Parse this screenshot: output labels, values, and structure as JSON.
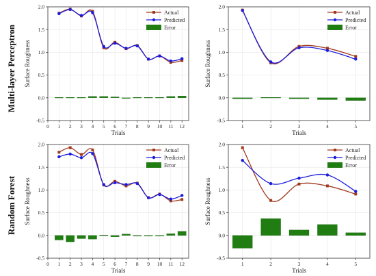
{
  "row_labels": [
    "Multi-layer Perceptron",
    "Random Forest"
  ],
  "colors": {
    "actual": "#a0391c",
    "predicted": "#1c1cdc",
    "error": "#1f7d12"
  },
  "chart_data": [
    {
      "type": "line",
      "row_label": "Multi-layer Perceptron",
      "xlabel": "Trials",
      "ylabel": "Surface Roughness",
      "xlim": [
        0,
        12.6
      ],
      "ylim": [
        -0.5,
        2.0
      ],
      "xticks": [
        0,
        1,
        2,
        3,
        4,
        5,
        6,
        7,
        8,
        9,
        10,
        11,
        12
      ],
      "yticks": [
        -0.5,
        0.0,
        0.5,
        1.0,
        1.5,
        2.0
      ],
      "x": [
        1,
        2,
        3,
        4,
        5,
        6,
        7,
        8,
        9,
        10,
        11,
        12
      ],
      "series": [
        {
          "name": "Actual",
          "kind": "line",
          "color": "#a0391c",
          "values": [
            1.86,
            1.95,
            1.8,
            1.9,
            1.1,
            1.22,
            1.08,
            1.15,
            0.85,
            0.92,
            0.78,
            0.82
          ]
        },
        {
          "name": "Predicted",
          "kind": "line",
          "color": "#1c1cdc",
          "values": [
            1.85,
            1.94,
            1.81,
            1.87,
            1.13,
            1.2,
            1.09,
            1.14,
            0.85,
            0.92,
            0.81,
            0.86
          ]
        },
        {
          "name": "Error",
          "kind": "bar",
          "color": "#1f7d12",
          "values": [
            0.01,
            0.01,
            0.01,
            0.03,
            0.03,
            0.02,
            0.0,
            0.01,
            0.01,
            0.01,
            0.03,
            0.04
          ]
        }
      ],
      "legend": "top-right",
      "grid": true
    },
    {
      "type": "line",
      "row_label": "Multi-layer Perceptron",
      "xlabel": "Trials",
      "ylabel": "Surface Roughness",
      "xlim": [
        0.5,
        5.5
      ],
      "ylim": [
        -0.5,
        2.0
      ],
      "xticks": [
        1,
        2,
        3,
        4,
        5
      ],
      "yticks": [
        -0.5,
        0.0,
        0.5,
        1.0,
        1.5,
        2.0
      ],
      "x": [
        1,
        2,
        3,
        4,
        5
      ],
      "series": [
        {
          "name": "Actual",
          "kind": "line",
          "color": "#a0391c",
          "values": [
            1.93,
            0.77,
            1.13,
            1.09,
            0.91
          ]
        },
        {
          "name": "Predicted",
          "kind": "line",
          "color": "#1c1cdc",
          "values": [
            1.92,
            0.79,
            1.1,
            1.04,
            0.85
          ]
        },
        {
          "name": "Error",
          "kind": "bar",
          "color": "#1f7d12",
          "values": [
            -0.02,
            0.01,
            -0.02,
            -0.04,
            -0.06
          ]
        }
      ],
      "legend": "top-right",
      "grid": true
    },
    {
      "type": "line",
      "row_label": "Random Forest",
      "xlabel": "Trials",
      "ylabel": "Surface Roughness",
      "xlim": [
        0,
        12.6
      ],
      "ylim": [
        -0.5,
        2.0
      ],
      "xticks": [
        0,
        1,
        2,
        3,
        4,
        5,
        6,
        7,
        8,
        9,
        10,
        11,
        12
      ],
      "yticks": [
        -0.5,
        0.0,
        0.5,
        1.0,
        1.5,
        2.0
      ],
      "x": [
        1,
        2,
        3,
        4,
        5,
        6,
        7,
        8,
        9,
        10,
        11,
        12
      ],
      "series": [
        {
          "name": "Actual",
          "kind": "line",
          "color": "#a0391c",
          "values": [
            1.83,
            1.93,
            1.78,
            1.88,
            1.11,
            1.19,
            1.09,
            1.15,
            0.83,
            0.91,
            0.76,
            0.79
          ]
        },
        {
          "name": "Predicted",
          "kind": "line",
          "color": "#1c1cdc",
          "values": [
            1.73,
            1.79,
            1.71,
            1.8,
            1.12,
            1.16,
            1.12,
            1.14,
            0.83,
            0.9,
            0.8,
            0.88
          ]
        },
        {
          "name": "Error",
          "kind": "bar",
          "color": "#1f7d12",
          "values": [
            -0.1,
            -0.14,
            -0.07,
            -0.08,
            0.01,
            -0.03,
            0.03,
            -0.01,
            0.0,
            -0.01,
            0.04,
            0.09
          ]
        }
      ],
      "legend": "top-right",
      "grid": true
    },
    {
      "type": "line",
      "row_label": "Random Forest",
      "xlabel": "Trials",
      "ylabel": "Surface Roughness",
      "xlim": [
        0.5,
        5.5
      ],
      "ylim": [
        -0.5,
        2.0
      ],
      "xticks": [
        1,
        2,
        3,
        4,
        5
      ],
      "yticks": [
        -0.5,
        0.0,
        0.5,
        1.0,
        1.5,
        2.0
      ],
      "x": [
        1,
        2,
        3,
        4,
        5
      ],
      "series": [
        {
          "name": "Actual",
          "kind": "line",
          "color": "#a0391c",
          "values": [
            1.93,
            0.77,
            1.13,
            1.09,
            0.91
          ]
        },
        {
          "name": "Predicted",
          "kind": "line",
          "color": "#1c1cdc",
          "values": [
            1.65,
            1.14,
            1.26,
            1.33,
            0.97
          ]
        },
        {
          "name": "Error",
          "kind": "bar",
          "color": "#1f7d12",
          "values": [
            -0.28,
            0.37,
            0.12,
            0.24,
            0.06
          ]
        }
      ],
      "legend": "top-right",
      "grid": true
    }
  ]
}
